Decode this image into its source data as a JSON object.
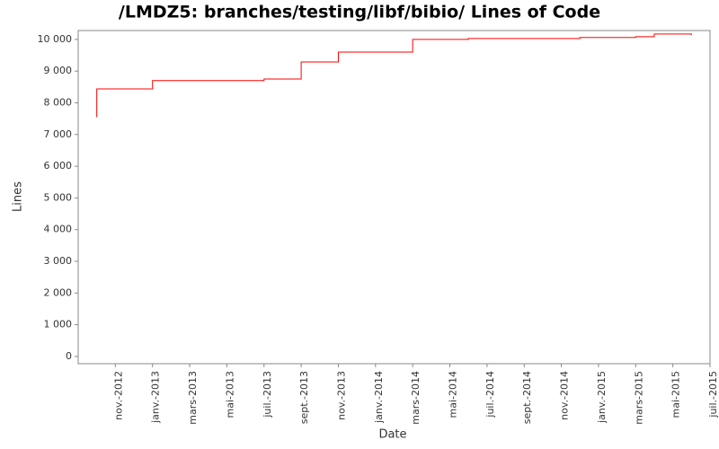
{
  "chart_data": {
    "type": "step",
    "title": "/LMDZ5: branches/testing/libf/bibio/ Lines of Code",
    "x_label": "Date",
    "y_label": "Lines",
    "series": [
      {
        "name": "Lines",
        "color": "#ff0000",
        "x": [
          "2012-10",
          "2012-10",
          "2012-10",
          "2013-01",
          "2013-07",
          "2013-09",
          "2013-11",
          "2014-03",
          "2014-06",
          "2014-12",
          "2015-03",
          "2015-04",
          "2015-06"
        ],
        "values": [
          7550,
          7930,
          8440,
          8700,
          8750,
          9290,
          9600,
          10000,
          10030,
          10060,
          10085,
          10170,
          10140
        ]
      }
    ],
    "xlim": [
      "2012-09",
      "2015-07"
    ],
    "xticks": [
      {
        "value": "2012-11",
        "label": "nov.-2012"
      },
      {
        "value": "2013-01",
        "label": "janv.-2013"
      },
      {
        "value": "2013-03",
        "label": "mars-2013"
      },
      {
        "value": "2013-05",
        "label": "mai-2013"
      },
      {
        "value": "2013-07",
        "label": "juil.-2013"
      },
      {
        "value": "2013-09",
        "label": "sept.-2013"
      },
      {
        "value": "2013-11",
        "label": "nov.-2013"
      },
      {
        "value": "2014-01",
        "label": "janv.-2014"
      },
      {
        "value": "2014-03",
        "label": "mars-2014"
      },
      {
        "value": "2014-05",
        "label": "mai-2014"
      },
      {
        "value": "2014-07",
        "label": "juil.-2014"
      },
      {
        "value": "2014-09",
        "label": "sept.-2014"
      },
      {
        "value": "2014-11",
        "label": "nov.-2014"
      },
      {
        "value": "2015-01",
        "label": "janv.-2015"
      },
      {
        "value": "2015-03",
        "label": "mars-2015"
      },
      {
        "value": "2015-05",
        "label": "mai-2015"
      },
      {
        "value": "2015-07",
        "label": "juil.-2015"
      }
    ],
    "ylim": [
      -230,
      10280
    ],
    "yticks": [
      0,
      {
        "value": 1000,
        "label": "1 000"
      },
      {
        "value": 2000,
        "label": "2 000"
      },
      {
        "value": 3000,
        "label": "3 000"
      },
      {
        "value": 4000,
        "label": "4 000"
      },
      {
        "value": 5000,
        "label": "5 000"
      },
      {
        "value": 6000,
        "label": "6 000"
      },
      {
        "value": 7000,
        "label": "7 000"
      },
      {
        "value": 8000,
        "label": "8 000"
      },
      {
        "value": 9000,
        "label": "9 000"
      },
      {
        "value": 10000,
        "label": "10 000"
      }
    ]
  }
}
